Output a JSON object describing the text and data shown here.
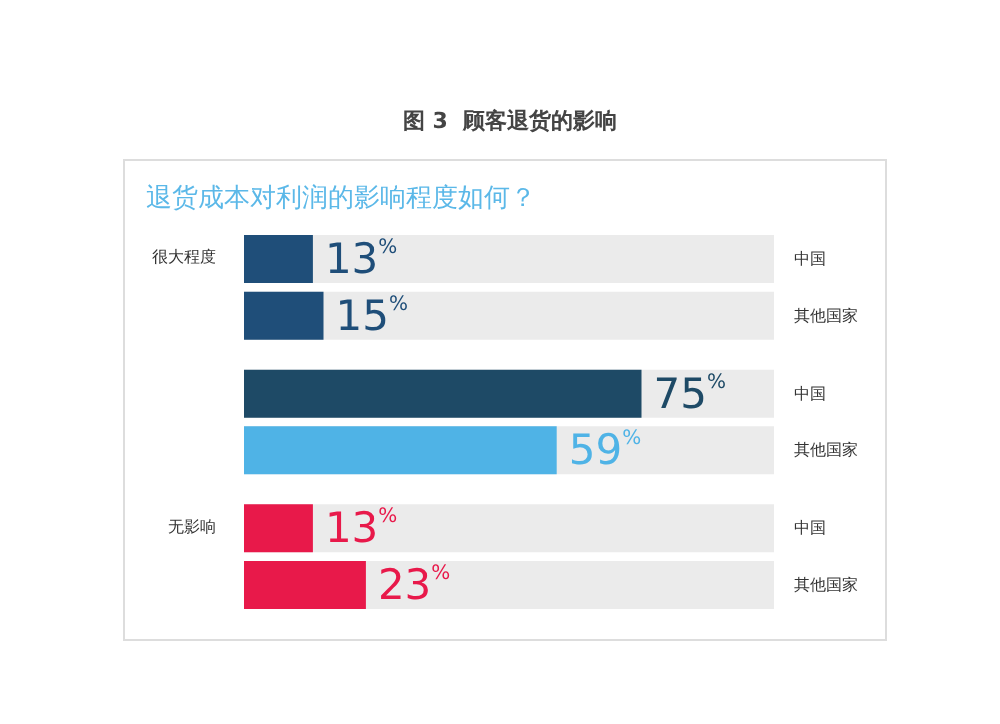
{
  "chart_data": {
    "type": "bar",
    "orientation": "horizontal",
    "title": "图 3  顾客退货的影响",
    "subtitle": "退货成本对利润的影响程度如何？",
    "categories": [
      "很大程度",
      null,
      "无影响"
    ],
    "series": [
      {
        "name": "中国",
        "colors": [
          "#1f4e79",
          "#1e4a66",
          "#e8194a"
        ],
        "values": [
          13,
          75,
          13
        ],
        "value_labels": [
          "13%",
          "75%",
          "13%"
        ]
      },
      {
        "name": "其他国家",
        "colors": [
          "#1f4e79",
          "#4fb3e6",
          "#e8194a"
        ],
        "values": [
          15,
          59,
          23
        ],
        "value_labels": [
          "15%",
          "59%",
          "23%"
        ]
      }
    ],
    "xlim": [
      0,
      100
    ],
    "tick_labels": "y",
    "grid": false,
    "legend": false
  }
}
